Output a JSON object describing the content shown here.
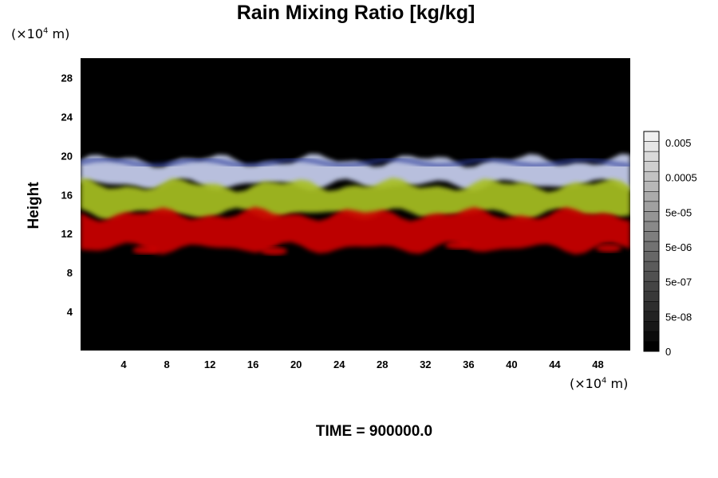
{
  "chart_data": {
    "type": "heatmap",
    "title": "Rain Mixing Ratio [kg/kg]",
    "ylabel": "Height",
    "xlabel": "",
    "x_unit": "(×10⁴ m)",
    "y_unit": "(×10⁴ m)",
    "xlim": [
      0,
      51
    ],
    "ylim": [
      0,
      30
    ],
    "x_ticks": [
      4,
      8,
      12,
      16,
      20,
      24,
      28,
      32,
      36,
      40,
      44,
      48
    ],
    "y_ticks": [
      4,
      8,
      12,
      16,
      20,
      24,
      28
    ],
    "grid": false,
    "background": "#000000",
    "layers": [
      {
        "color": "#c8d0f0",
        "y_range": [
          17,
          19.5
        ]
      },
      {
        "color": "#a8c020",
        "y_range": [
          14,
          17
        ]
      },
      {
        "color": "#cc0000",
        "y_range": [
          10.5,
          14
        ]
      }
    ],
    "colorbar": {
      "position": "right",
      "ticks": [
        "0.005",
        "0.0005",
        "5e-05",
        "5e-06",
        "5e-07",
        "5e-08",
        "0"
      ]
    }
  },
  "footer": {
    "time_label": "TIME = 900000.0"
  }
}
